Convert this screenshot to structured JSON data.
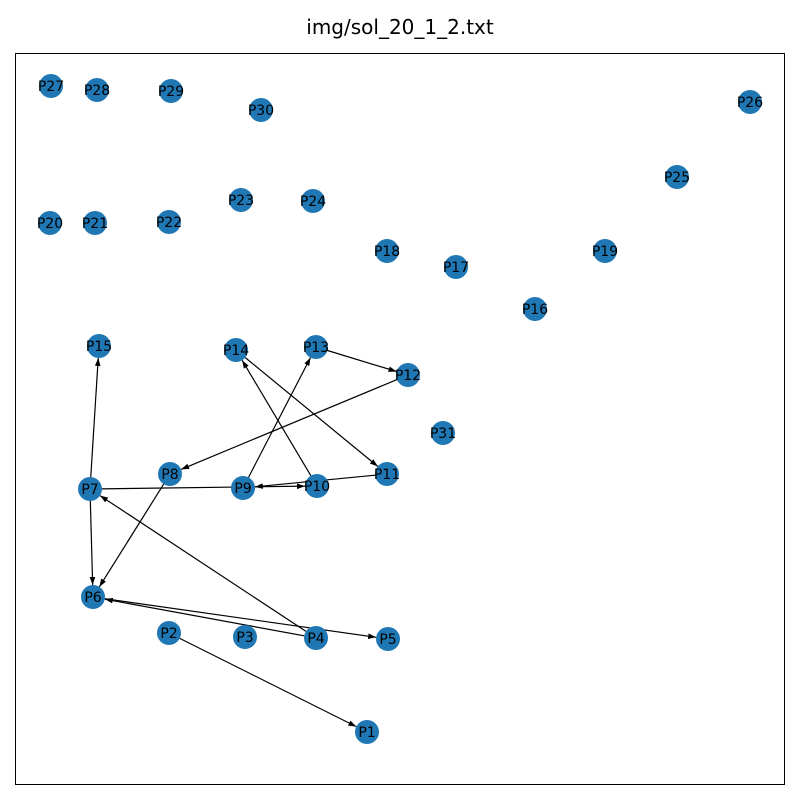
{
  "title": "img/sol_20_1_2.txt",
  "nodes": [
    {
      "id": "P1"
    },
    {
      "id": "P2"
    },
    {
      "id": "P3"
    },
    {
      "id": "P4"
    },
    {
      "id": "P5"
    },
    {
      "id": "P6"
    },
    {
      "id": "P7"
    },
    {
      "id": "P8"
    },
    {
      "id": "P9"
    },
    {
      "id": "P10"
    },
    {
      "id": "P11"
    },
    {
      "id": "P12"
    },
    {
      "id": "P13"
    },
    {
      "id": "P14"
    },
    {
      "id": "P15"
    },
    {
      "id": "P16"
    },
    {
      "id": "P17"
    },
    {
      "id": "P18"
    },
    {
      "id": "P19"
    },
    {
      "id": "P20"
    },
    {
      "id": "P21"
    },
    {
      "id": "P22"
    },
    {
      "id": "P23"
    },
    {
      "id": "P24"
    },
    {
      "id": "P25"
    },
    {
      "id": "P26"
    },
    {
      "id": "P27"
    },
    {
      "id": "P28"
    },
    {
      "id": "P29"
    },
    {
      "id": "P30"
    },
    {
      "id": "P31"
    }
  ],
  "edges": [
    {
      "from": "P2",
      "to": "P1"
    },
    {
      "from": "P4",
      "to": "P7"
    },
    {
      "from": "P4",
      "to": "P6"
    },
    {
      "from": "P6",
      "to": "P5"
    },
    {
      "from": "P7",
      "to": "P6"
    },
    {
      "from": "P7",
      "to": "P15"
    },
    {
      "from": "P7",
      "to": "P10"
    },
    {
      "from": "P8",
      "to": "P6"
    },
    {
      "from": "P9",
      "to": "P13"
    },
    {
      "from": "P10",
      "to": "P14"
    },
    {
      "from": "P11",
      "to": "P9"
    },
    {
      "from": "P12",
      "to": "P8"
    },
    {
      "from": "P13",
      "to": "P12"
    },
    {
      "from": "P14",
      "to": "P11"
    }
  ]
}
